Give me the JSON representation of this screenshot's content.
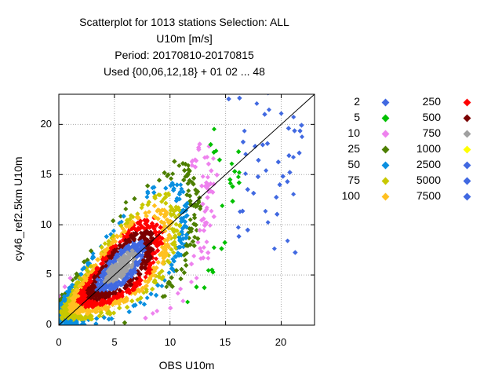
{
  "chart_data": {
    "type": "scatter",
    "title_lines": [
      "Scatterplot for 1013 stations Selection: ALL",
      "U10m [m/s]",
      "Period: 20170810-20170815",
      "Used {00,06,12,18} + 01 02 ... 48"
    ],
    "xlabel": "OBS U10m",
    "ylabel": "cy46_ref2.5km U10m",
    "xlim": [
      0,
      23
    ],
    "ylim": [
      0,
      23
    ],
    "xticks": [
      0,
      5,
      10,
      15,
      20
    ],
    "yticks": [
      0,
      5,
      10,
      15,
      20
    ],
    "grid": true,
    "diagonal_line": true,
    "legend_position": "right",
    "series": [
      {
        "name": "2",
        "color": "#4169e1"
      },
      {
        "name": "5",
        "color": "#00c000"
      },
      {
        "name": "10",
        "color": "#ee82ee"
      },
      {
        "name": "25",
        "color": "#4d7f00"
      },
      {
        "name": "50",
        "color": "#0a8fe0"
      },
      {
        "name": "75",
        "color": "#c8c800"
      },
      {
        "name": "100",
        "color": "#ffc020"
      },
      {
        "name": "250",
        "color": "#ff0000"
      },
      {
        "name": "500",
        "color": "#7a0000"
      },
      {
        "name": "750",
        "color": "#a0a0a0"
      },
      {
        "name": "1000",
        "color": "#ffff00"
      },
      {
        "name": "2500",
        "color": "#4169e1"
      },
      {
        "name": "5000",
        "color": "#4169e1"
      },
      {
        "name": "7500",
        "color": "#4169e1"
      }
    ]
  }
}
